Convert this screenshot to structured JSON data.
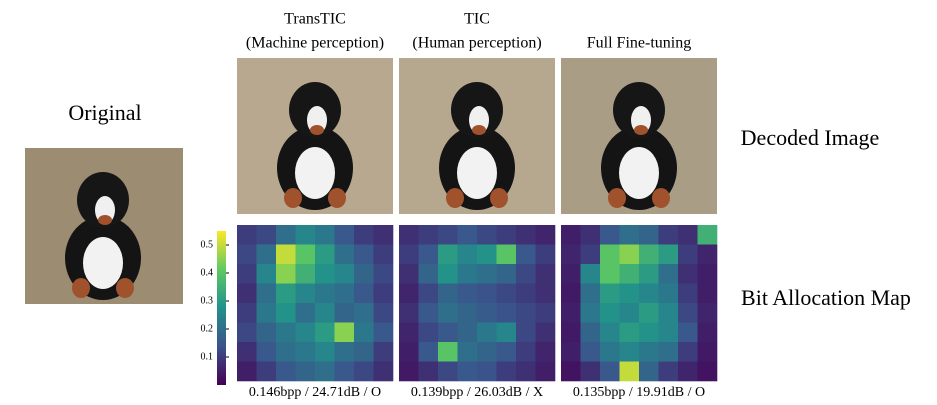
{
  "original_label": "Original",
  "columns": [
    {
      "title": "TransTIC",
      "subtitle": "(Machine perception)",
      "caption": "0.146bpp / 24.71dB / O"
    },
    {
      "title": "TIC",
      "subtitle": "(Human perception)",
      "caption": "0.139bpp / 26.03dB / X"
    },
    {
      "title": "Full Fine-tuning",
      "caption": "0.135bpp / 19.91dB / O"
    }
  ],
  "row_labels": [
    "Decoded Image",
    "Bit Allocation Map"
  ],
  "colorbar": {
    "lim": [
      0,
      0.55
    ],
    "ticks": [
      0.1,
      0.2,
      0.3,
      0.4,
      0.5
    ]
  },
  "maps": [
    [
      [
        0.1,
        0.12,
        0.2,
        0.25,
        0.22,
        0.15,
        0.1,
        0.08
      ],
      [
        0.12,
        0.2,
        0.5,
        0.4,
        0.3,
        0.2,
        0.15,
        0.1
      ],
      [
        0.1,
        0.25,
        0.45,
        0.35,
        0.28,
        0.25,
        0.18,
        0.12
      ],
      [
        0.08,
        0.2,
        0.3,
        0.25,
        0.22,
        0.2,
        0.15,
        0.1
      ],
      [
        0.1,
        0.22,
        0.28,
        0.2,
        0.25,
        0.18,
        0.2,
        0.12
      ],
      [
        0.12,
        0.18,
        0.22,
        0.25,
        0.3,
        0.45,
        0.22,
        0.15
      ],
      [
        0.08,
        0.15,
        0.2,
        0.22,
        0.25,
        0.2,
        0.18,
        0.1
      ],
      [
        0.05,
        0.1,
        0.15,
        0.18,
        0.2,
        0.15,
        0.12,
        0.08
      ]
    ],
    [
      [
        0.08,
        0.1,
        0.12,
        0.15,
        0.12,
        0.1,
        0.08,
        0.06
      ],
      [
        0.1,
        0.15,
        0.3,
        0.25,
        0.28,
        0.4,
        0.15,
        0.1
      ],
      [
        0.08,
        0.18,
        0.28,
        0.22,
        0.2,
        0.18,
        0.12,
        0.08
      ],
      [
        0.06,
        0.12,
        0.18,
        0.15,
        0.14,
        0.12,
        0.1,
        0.08
      ],
      [
        0.08,
        0.15,
        0.2,
        0.18,
        0.16,
        0.14,
        0.12,
        0.1
      ],
      [
        0.06,
        0.12,
        0.15,
        0.18,
        0.22,
        0.25,
        0.12,
        0.08
      ],
      [
        0.05,
        0.15,
        0.4,
        0.2,
        0.18,
        0.15,
        0.1,
        0.06
      ],
      [
        0.04,
        0.08,
        0.12,
        0.15,
        0.14,
        0.1,
        0.08,
        0.05
      ]
    ],
    [
      [
        0.05,
        0.08,
        0.15,
        0.2,
        0.18,
        0.1,
        0.08,
        0.35
      ],
      [
        0.06,
        0.1,
        0.4,
        0.45,
        0.35,
        0.3,
        0.1,
        0.06
      ],
      [
        0.05,
        0.25,
        0.4,
        0.35,
        0.3,
        0.2,
        0.08,
        0.05
      ],
      [
        0.04,
        0.2,
        0.3,
        0.28,
        0.25,
        0.22,
        0.1,
        0.05
      ],
      [
        0.05,
        0.22,
        0.28,
        0.25,
        0.3,
        0.25,
        0.12,
        0.06
      ],
      [
        0.04,
        0.18,
        0.25,
        0.3,
        0.28,
        0.25,
        0.15,
        0.05
      ],
      [
        0.05,
        0.15,
        0.22,
        0.25,
        0.22,
        0.2,
        0.1,
        0.04
      ],
      [
        0.03,
        0.08,
        0.15,
        0.5,
        0.18,
        0.1,
        0.06,
        0.03
      ]
    ]
  ]
}
